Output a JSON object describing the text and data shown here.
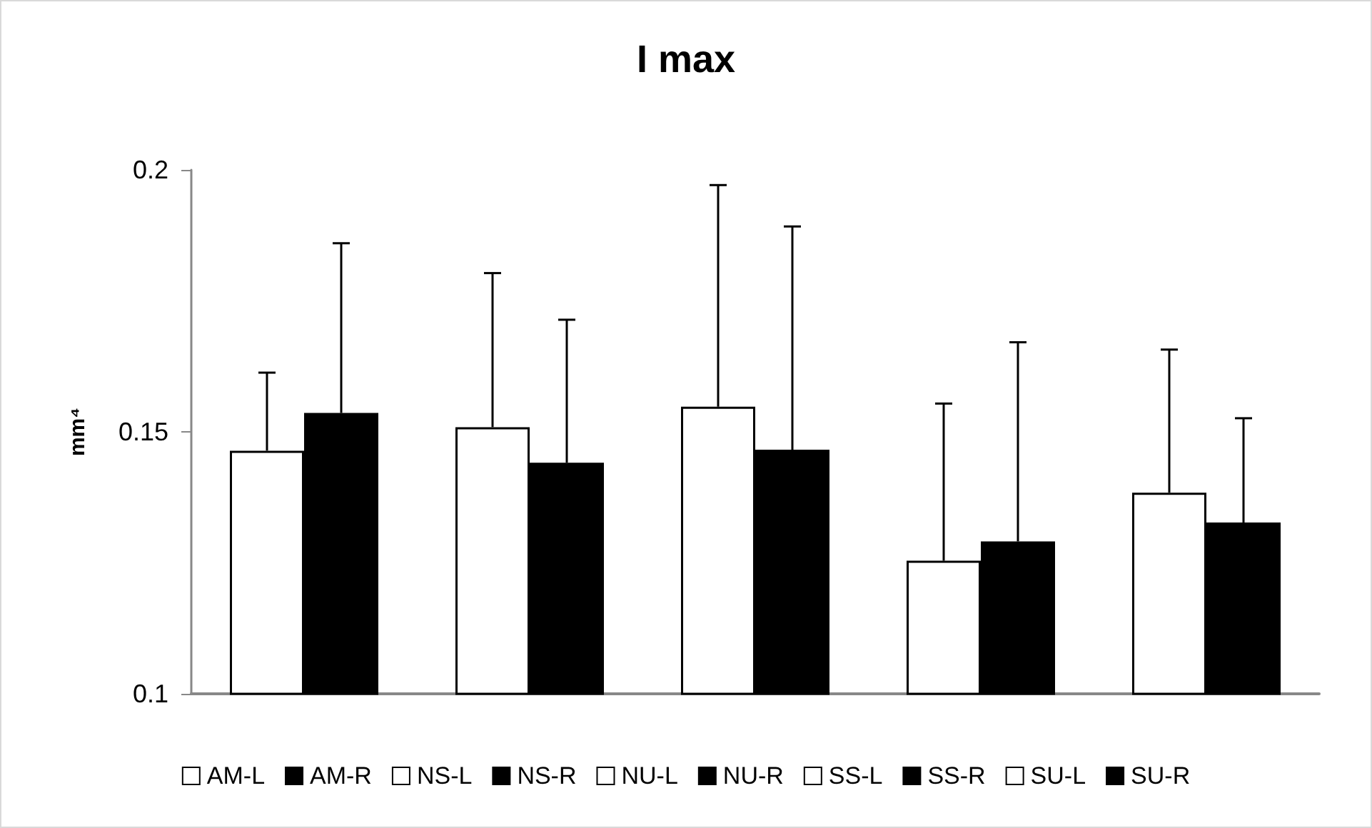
{
  "chart_data": {
    "type": "bar",
    "title": "I max",
    "ylabel": "mm⁴",
    "categories": [
      null,
      null,
      null,
      null,
      null
    ],
    "series": [
      {
        "name": "AM-L",
        "color": "#ffffff",
        "values": [
          0.1464,
          null,
          null,
          null,
          null
        ],
        "errors": [
          [
            0.1464,
            0.1613
          ],
          null,
          null,
          null,
          null
        ]
      },
      {
        "name": "AM-R",
        "color": "#000000",
        "values": [
          0.1536,
          null,
          null,
          null,
          null
        ],
        "errors": [
          [
            0.1536,
            0.186
          ],
          null,
          null,
          null,
          null
        ]
      },
      {
        "name": "NS-L",
        "color": "#ffffff",
        "values": [
          null,
          0.1509,
          null,
          null,
          null
        ],
        "errors": [
          null,
          [
            0.1509,
            0.1803
          ],
          null,
          null,
          null
        ]
      },
      {
        "name": "NS-R",
        "color": "#000000",
        "values": [
          null,
          0.1441,
          null,
          null,
          null
        ],
        "errors": [
          null,
          [
            0.1441,
            0.1714
          ],
          null,
          null,
          null
        ]
      },
      {
        "name": "NU-L",
        "color": "#ffffff",
        "values": [
          null,
          null,
          0.1548,
          null,
          null
        ],
        "errors": [
          null,
          null,
          [
            0.1548,
            0.1971
          ],
          null,
          null
        ]
      },
      {
        "name": "NU-R",
        "color": "#000000",
        "values": [
          null,
          null,
          0.1466,
          null,
          null
        ],
        "errors": [
          null,
          null,
          [
            0.1466,
            0.1892
          ],
          null,
          null
        ]
      },
      {
        "name": "SS-L",
        "color": "#ffffff",
        "values": [
          null,
          null,
          null,
          0.1254,
          null
        ],
        "errors": [
          null,
          null,
          null,
          [
            0.1254,
            0.1554
          ],
          null
        ]
      },
      {
        "name": "SS-R",
        "color": "#000000",
        "values": [
          null,
          null,
          null,
          0.1291,
          null
        ],
        "errors": [
          null,
          null,
          null,
          [
            0.1291,
            0.1671
          ],
          null
        ]
      },
      {
        "name": "SU-L",
        "color": "#ffffff",
        "values": [
          null,
          null,
          null,
          null,
          0.1384
        ],
        "errors": [
          null,
          null,
          null,
          null,
          [
            0.1384,
            0.1657
          ]
        ]
      },
      {
        "name": "SU-R",
        "color": "#000000",
        "values": [
          null,
          null,
          null,
          null,
          0.1327
        ],
        "errors": [
          null,
          null,
          null,
          null,
          [
            0.1327,
            0.1526
          ]
        ]
      }
    ],
    "ylim": [
      0.1,
      0.2
    ],
    "yticks": [
      0.1,
      0.15,
      0.2
    ],
    "grid": false,
    "legend": "bottom"
  }
}
